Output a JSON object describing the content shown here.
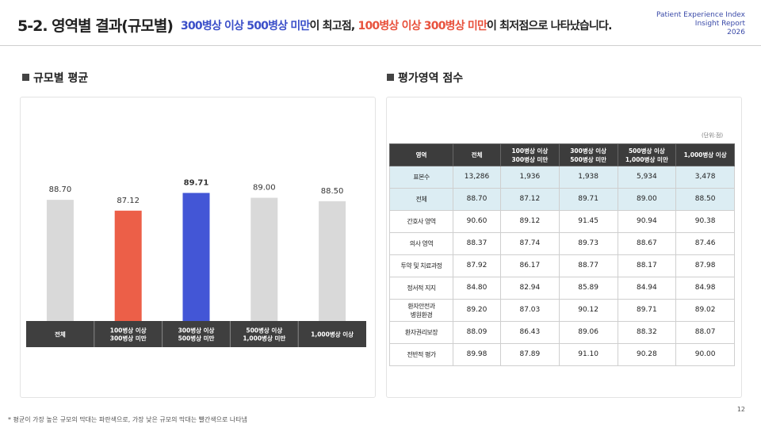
{
  "header": {
    "title": "5-2. 영역별 결과(규모별)",
    "subtitle": [
      {
        "text": "300병상 이상 500병상 미만",
        "color": "#3b4fc9"
      },
      {
        "text": "이 최고점, ",
        "color": "#222222"
      },
      {
        "text": "100병상 이상 300병상 미만",
        "color": "#e8523d"
      },
      {
        "text": "이 최저점으로 나타났습니다.",
        "color": "#222222"
      }
    ],
    "brand": [
      "Patient Experience Index",
      "Insight Report",
      "2026"
    ]
  },
  "sections": [
    "규모별 평균",
    "평가영역 점수"
  ],
  "chart_data": {
    "type": "bar",
    "categories": [
      [
        "전체"
      ],
      [
        "100병상 이상",
        "300병상 미만"
      ],
      [
        "300병상 이상",
        "500병상 미만"
      ],
      [
        "500병상 이상",
        "1,000병상 미만"
      ],
      [
        "1,000병상 이상"
      ]
    ],
    "values": [
      88.7,
      87.12,
      89.71,
      89.0,
      88.5
    ],
    "value_labels": [
      "88.70",
      "87.12",
      "89.71",
      "89.00",
      "88.50"
    ],
    "colors": [
      "#d9d9d9",
      "#ec5f48",
      "#4356d6",
      "#d9d9d9",
      "#d9d9d9"
    ],
    "ylim": [
      71,
      93
    ]
  },
  "table": {
    "unit": "(단위:점)",
    "header": [
      "영역",
      "전체",
      "100병상 이상\n300병상 미만",
      "300병상 이상\n500병상 미만",
      "500병상 이상\n1,000병상 미만",
      "1,000병상 이상"
    ],
    "rows": [
      [
        "표본수",
        "13,286",
        "1,936",
        "1,938",
        "5,934",
        "3,478"
      ],
      [
        "전체",
        "88.70",
        "87.12",
        "89.71",
        "89.00",
        "88.50"
      ],
      [
        "간호사 영역",
        "90.60",
        "89.12",
        "91.45",
        "90.94",
        "90.38"
      ],
      [
        "의사 영역",
        "88.37",
        "87.74",
        "89.73",
        "88.67",
        "87.46"
      ],
      [
        "투약 및 치료과정",
        "87.92",
        "86.17",
        "88.77",
        "88.17",
        "87.98"
      ],
      [
        "정서적 지지",
        "84.80",
        "82.94",
        "85.89",
        "84.94",
        "84.98"
      ],
      [
        "환자안전과\n병원환경",
        "89.20",
        "87.03",
        "90.12",
        "89.71",
        "89.02"
      ],
      [
        "환자권리보장",
        "88.09",
        "86.43",
        "89.06",
        "88.32",
        "88.07"
      ],
      [
        "전반적 평가",
        "89.98",
        "87.89",
        "91.10",
        "90.28",
        "90.00"
      ]
    ],
    "highlight_rows": 2
  },
  "footnote": "* 평균이 가장 높은 규모의 막대는 파란색으로, 가장 낮은 규모의 막대는 빨간색으로 나타냄",
  "page_number": "12"
}
